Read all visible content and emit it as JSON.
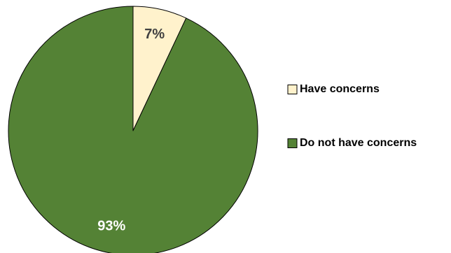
{
  "chart_data": {
    "type": "pie",
    "slices": [
      {
        "label": "Have concerns",
        "value": 7,
        "display": "7%",
        "color": "#FFF2CC",
        "label_color": "#404040"
      },
      {
        "label": "Do not have concerns",
        "value": 93,
        "display": "93%",
        "color": "#548235",
        "label_color": "#FFFFFF"
      }
    ],
    "legend_position": "right",
    "start_angle": "12 o'clock",
    "direction": "clockwise"
  }
}
